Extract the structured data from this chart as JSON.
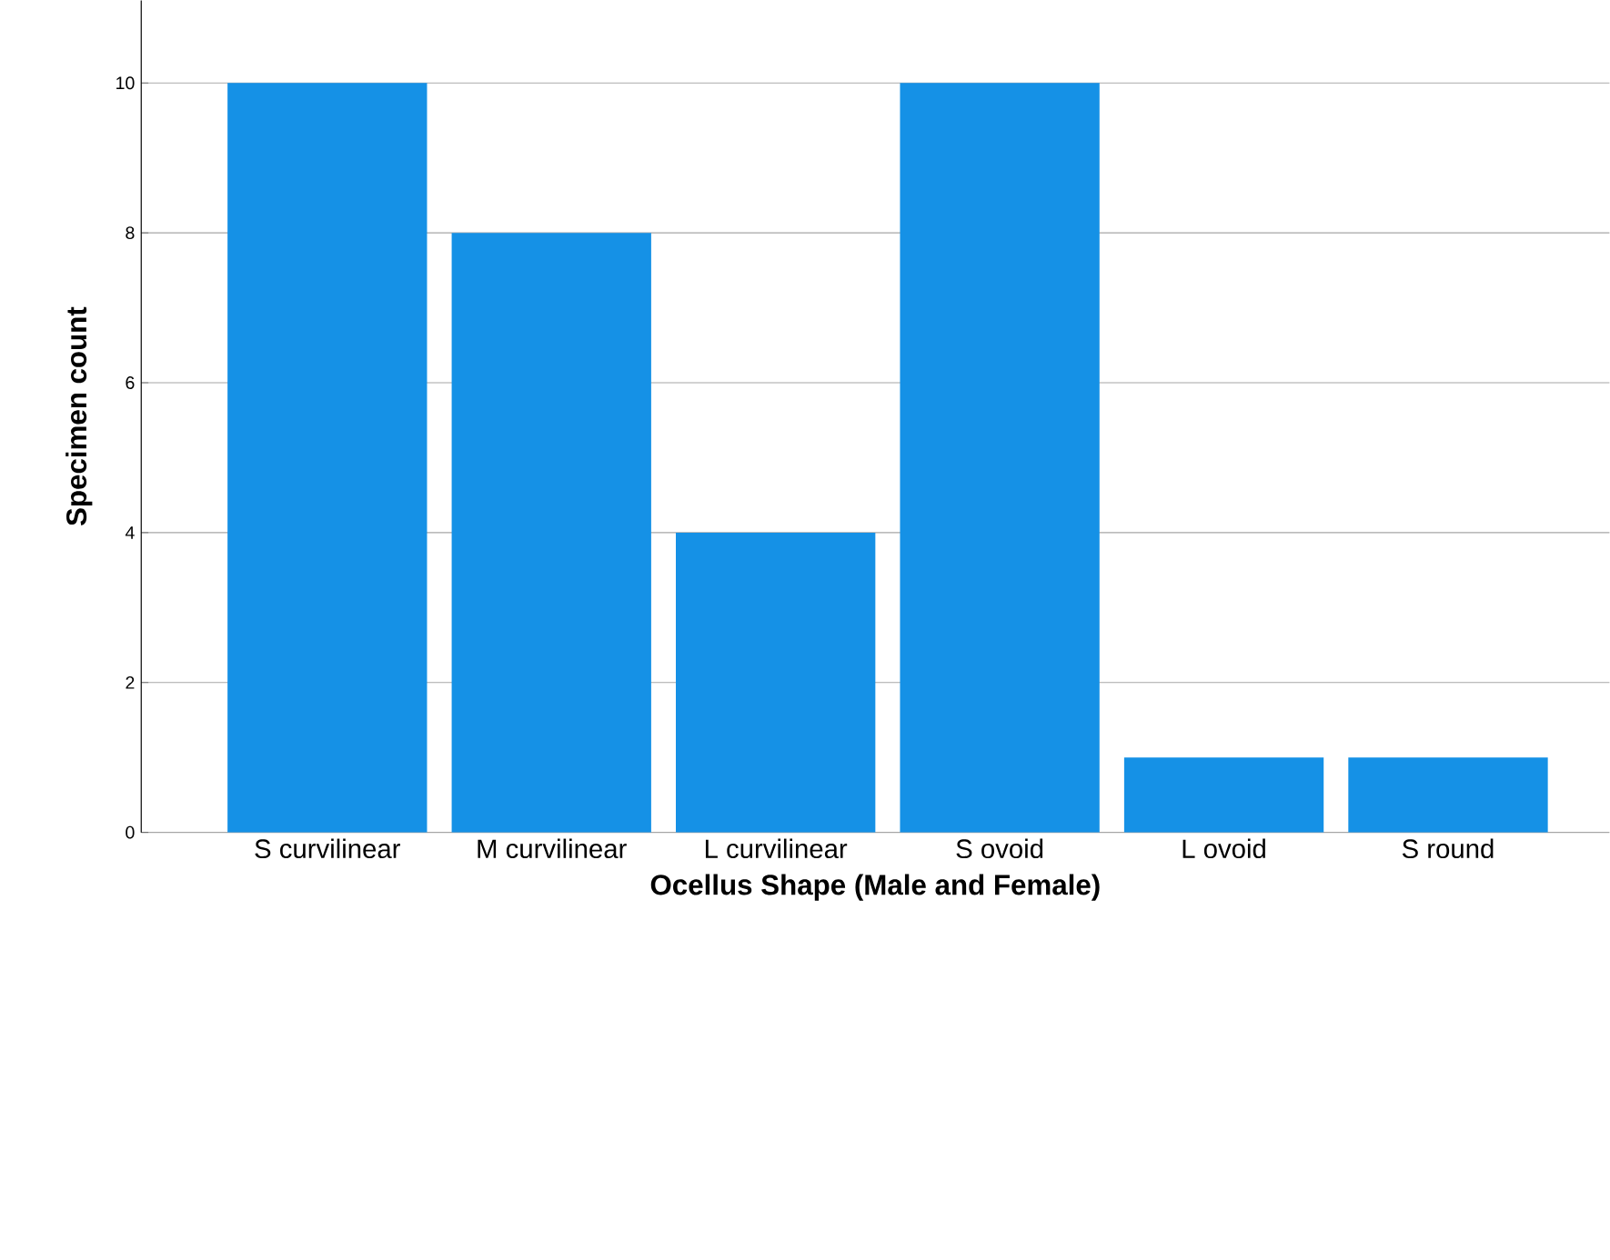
{
  "chart_data": {
    "type": "bar",
    "xlabel": "Ocellus Shape (Male and Female)",
    "ylabel": "Specimen count",
    "categories": [
      "S curvilinear",
      "M curvilinear",
      "L curvilinear",
      "S ovoid",
      "L ovoid",
      "S round"
    ],
    "values": [
      10,
      8,
      4,
      10,
      1,
      1
    ],
    "color": "#1591e6",
    "ylim": [
      0,
      11.1
    ],
    "yticks": [
      0,
      2,
      4,
      6,
      8,
      10
    ],
    "grid": "y"
  }
}
